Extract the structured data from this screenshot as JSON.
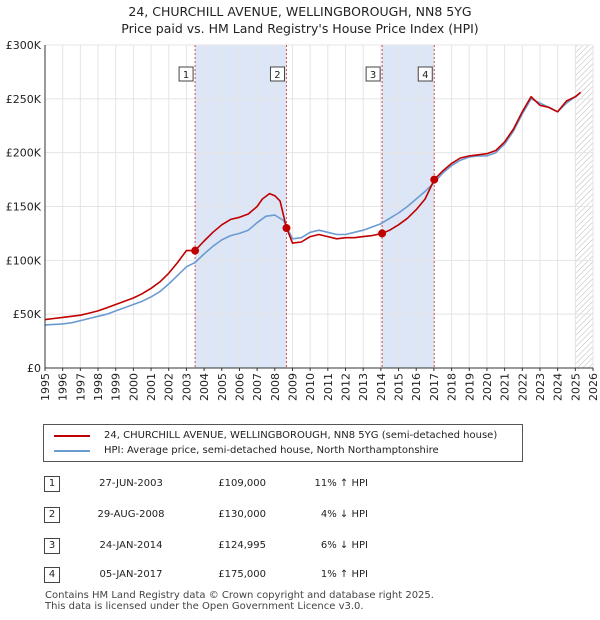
{
  "header": {
    "title_line1": "24, CHURCHILL AVENUE, WELLINGBOROUGH, NN8 5YG",
    "title_line2": "Price paid vs. HM Land Registry's House Price Index (HPI)"
  },
  "colors": {
    "property": "#c00000",
    "hpi": "#6c9bd2",
    "shade": "#dde6f7",
    "marker_line": "#d35050"
  },
  "chart_data": {
    "type": "line",
    "title": "24, CHURCHILL AVENUE, WELLINGBOROUGH, NN8 5YG",
    "xlim": [
      1995,
      2026
    ],
    "ylim": [
      0,
      300000
    ],
    "x_ticks": [
      "1995",
      "1996",
      "1997",
      "1998",
      "1999",
      "2000",
      "2001",
      "2002",
      "2003",
      "2004",
      "2005",
      "2006",
      "2007",
      "2008",
      "2009",
      "2010",
      "2011",
      "2012",
      "2013",
      "2014",
      "2015",
      "2016",
      "2017",
      "2018",
      "2019",
      "2020",
      "2021",
      "2022",
      "2023",
      "2024",
      "2025",
      "2026"
    ],
    "y_ticks": [
      {
        "value": 0,
        "label": "£0"
      },
      {
        "value": 50000,
        "label": "£50K"
      },
      {
        "value": 100000,
        "label": "£100K"
      },
      {
        "value": 150000,
        "label": "£150K"
      },
      {
        "value": 200000,
        "label": "£200K"
      },
      {
        "value": 250000,
        "label": "£250K"
      },
      {
        "value": 300000,
        "label": "£300K"
      }
    ],
    "shaded_periods": [
      [
        2003.49,
        2008.66
      ],
      [
        2014.07,
        2017.02
      ]
    ],
    "future_hatch_from": 2025.0,
    "series": [
      {
        "name": "24, CHURCHILL AVENUE, WELLINGBOROUGH, NN8 5YG (semi-detached house)",
        "color": "#c00000",
        "x": [
          1995.0,
          1995.5,
          1996.0,
          1996.5,
          1997.0,
          1997.5,
          1998.0,
          1998.5,
          1999.0,
          1999.5,
          2000.0,
          2000.5,
          2001.0,
          2001.5,
          2002.0,
          2002.5,
          2003.0,
          2003.49,
          2004.0,
          2004.5,
          2005.0,
          2005.5,
          2006.0,
          2006.5,
          2007.0,
          2007.3,
          2007.7,
          2008.0,
          2008.3,
          2008.66,
          2009.0,
          2009.5,
          2010.0,
          2010.5,
          2011.0,
          2011.5,
          2012.0,
          2012.5,
          2013.0,
          2013.5,
          2014.07,
          2014.5,
          2015.0,
          2015.5,
          2016.0,
          2016.5,
          2017.02,
          2017.5,
          2018.0,
          2018.5,
          2019.0,
          2019.5,
          2020.0,
          2020.5,
          2021.0,
          2021.5,
          2022.0,
          2022.5,
          2023.0,
          2023.5,
          2024.0,
          2024.5,
          2025.0,
          2025.3
        ],
        "y": [
          45000,
          46000,
          47000,
          48000,
          49000,
          51000,
          53000,
          56000,
          59000,
          62000,
          65000,
          69000,
          74000,
          80000,
          88000,
          98000,
          109000,
          109000,
          118000,
          126000,
          133000,
          138000,
          140000,
          143000,
          150000,
          157000,
          162000,
          160000,
          155000,
          130000,
          116000,
          117000,
          122000,
          124000,
          122000,
          120000,
          121000,
          121000,
          122000,
          123000,
          124995,
          128000,
          133000,
          139000,
          147000,
          157000,
          175000,
          183000,
          190000,
          195000,
          197000,
          198000,
          199000,
          202000,
          210000,
          222000,
          238000,
          252000,
          244000,
          242000,
          238000,
          248000,
          252000,
          256000
        ]
      },
      {
        "name": "HPI: Average price, semi-detached house, North Northamptonshire",
        "color": "#6c9bd2",
        "x": [
          1995.0,
          1995.5,
          1996.0,
          1996.5,
          1997.0,
          1997.5,
          1998.0,
          1998.5,
          1999.0,
          1999.5,
          2000.0,
          2000.5,
          2001.0,
          2001.5,
          2002.0,
          2002.5,
          2003.0,
          2003.49,
          2004.0,
          2004.5,
          2005.0,
          2005.5,
          2006.0,
          2006.5,
          2007.0,
          2007.5,
          2008.0,
          2008.5,
          2009.0,
          2009.5,
          2010.0,
          2010.5,
          2011.0,
          2011.5,
          2012.0,
          2012.5,
          2013.0,
          2013.5,
          2014.0,
          2014.5,
          2015.0,
          2015.5,
          2016.0,
          2016.5,
          2017.0,
          2017.5,
          2018.0,
          2018.5,
          2019.0,
          2019.5,
          2020.0,
          2020.5,
          2021.0,
          2021.5,
          2022.0,
          2022.5,
          2023.0,
          2023.5,
          2024.0,
          2024.5,
          2025.0,
          2025.3
        ],
        "y": [
          40000,
          40500,
          41000,
          42000,
          44000,
          46000,
          48000,
          50000,
          53000,
          56000,
          59000,
          62000,
          66000,
          71000,
          78000,
          86000,
          94000,
          98000,
          106000,
          113000,
          119000,
          123000,
          125000,
          128000,
          135000,
          141000,
          142000,
          137000,
          120000,
          121000,
          126000,
          128000,
          126000,
          124000,
          124000,
          126000,
          128000,
          131000,
          134000,
          139000,
          144000,
          150000,
          157000,
          164000,
          172000,
          181000,
          188000,
          193000,
          196000,
          197000,
          197000,
          200000,
          208000,
          220000,
          236000,
          250000,
          246000,
          242000,
          238000,
          246000,
          252000,
          256000
        ]
      }
    ],
    "transactions": [
      {
        "num": "1",
        "x": 2003.49,
        "price": 109000,
        "date": "27-JUN-2003",
        "price_label": "£109,000",
        "hpi_label": "11% ↑ HPI"
      },
      {
        "num": "2",
        "x": 2008.66,
        "price": 130000,
        "date": "29-AUG-2008",
        "price_label": "£130,000",
        "hpi_label": "4% ↓ HPI"
      },
      {
        "num": "3",
        "x": 2014.07,
        "price": 124995,
        "date": "24-JAN-2014",
        "price_label": "£124,995",
        "hpi_label": "6% ↓ HPI"
      },
      {
        "num": "4",
        "x": 2017.02,
        "price": 175000,
        "date": "05-JAN-2017",
        "price_label": "£175,000",
        "hpi_label": "1% ↑ HPI"
      }
    ]
  },
  "legend": {
    "property_label": "24, CHURCHILL AVENUE, WELLINGBOROUGH, NN8 5YG (semi-detached house)",
    "hpi_label": "HPI: Average price, semi-detached house, North Northamptonshire"
  },
  "footer": {
    "line1": "Contains HM Land Registry data © Crown copyright and database right 2025.",
    "line2": "This data is licensed under the Open Government Licence v3.0."
  }
}
